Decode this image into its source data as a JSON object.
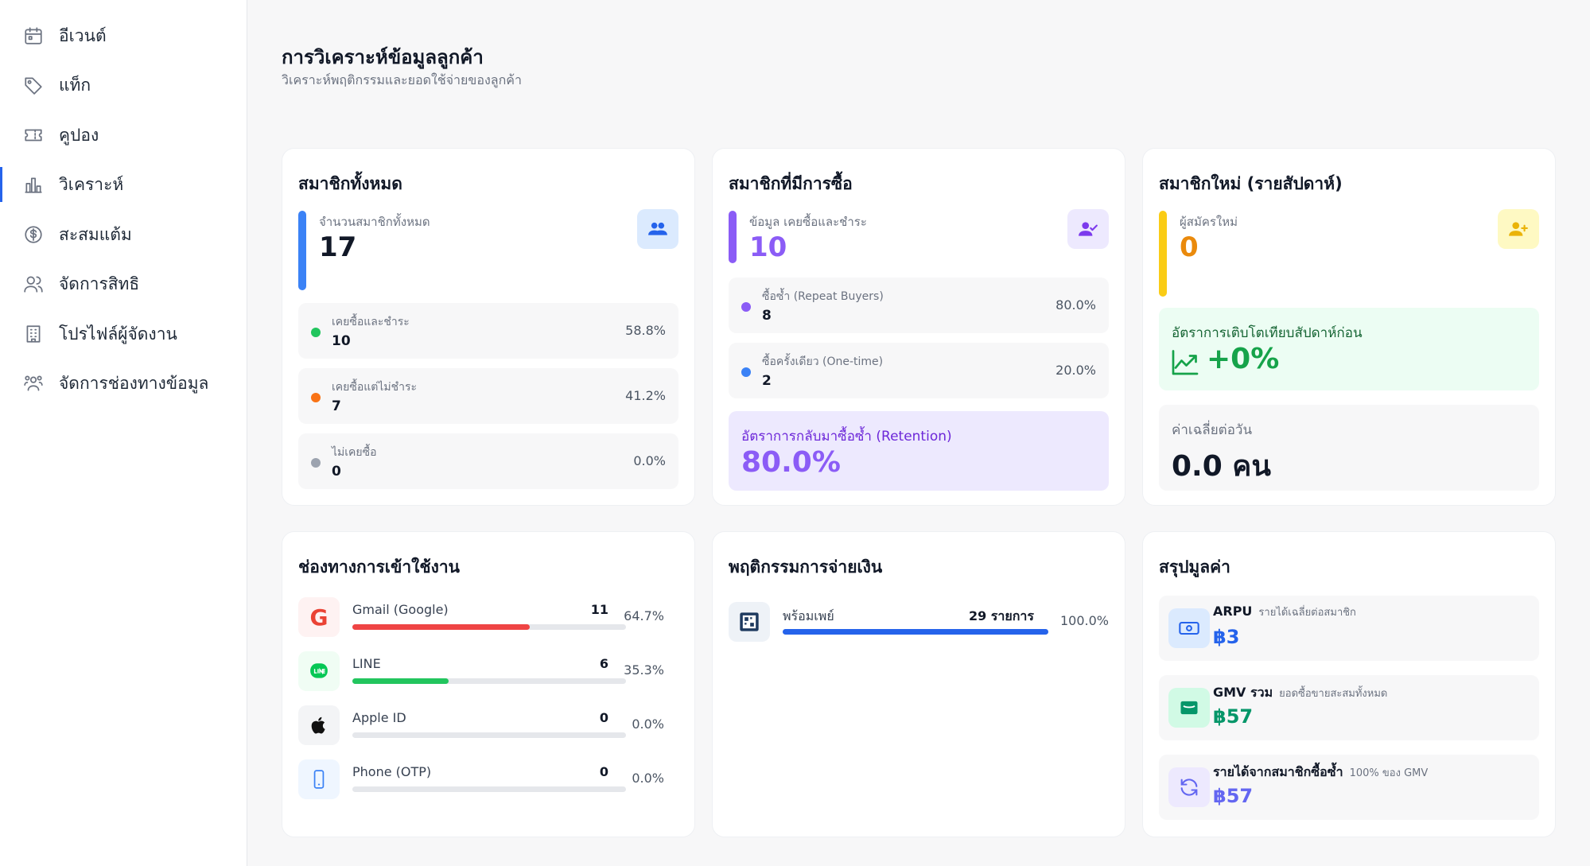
{
  "sidebar": {
    "items": [
      {
        "label": "อีเวนต์",
        "icon": "calendar-icon"
      },
      {
        "label": "แท็ก",
        "icon": "tag-icon"
      },
      {
        "label": "คูปอง",
        "icon": "ticket-icon"
      },
      {
        "label": "วิเคราะห์",
        "icon": "bar-chart-icon",
        "active": true
      },
      {
        "label": "สะสมแต้ม",
        "icon": "dollar-circle-icon"
      },
      {
        "label": "จัดการสิทธิ",
        "icon": "users-icon"
      },
      {
        "label": "โปรไฟล์ผู้จัดงาน",
        "icon": "building-icon"
      },
      {
        "label": "จัดการช่องทางข้อมูล",
        "icon": "user-network-icon"
      }
    ]
  },
  "header": {
    "title": "การวิเคราะห์ข้อมูลลูกค้า",
    "subtitle": "วิเคราะห์พฤติกรรมและยอดใช้จ่ายของลูกค้า"
  },
  "total_members": {
    "title": "สมาชิกทั้งหมด",
    "label": "จำนวนสมาชิกทั้งหมด",
    "value": "17",
    "rows": [
      {
        "label": "เคยซื้อและชำระ",
        "value": "10",
        "pct": "58.8%",
        "color": "#22c55e"
      },
      {
        "label": "เคยซื้อแต่ไม่ชำระ",
        "value": "7",
        "pct": "41.2%",
        "color": "#f97316"
      },
      {
        "label": "ไม่เคยซื้อ",
        "value": "0",
        "pct": "0.0%",
        "color": "#9ca3af"
      }
    ]
  },
  "purchasing_members": {
    "title": "สมาชิกที่มีการซื้อ",
    "label": "ข้อมูล เคยซื้อและชำระ",
    "value": "10",
    "rows": [
      {
        "label": "ซื้อซ้ำ (Repeat Buyers)",
        "value": "8",
        "pct": "80.0%",
        "color": "#8b5cf6"
      },
      {
        "label": "ซื้อครั้งเดียว (One-time)",
        "value": "2",
        "pct": "20.0%",
        "color": "#3b82f6"
      }
    ],
    "retention_label": "อัตราการกลับมาซื้อซ้ำ (Retention)",
    "retention_value": "80.0%"
  },
  "new_members": {
    "title": "สมาชิกใหม่ (รายสัปดาห์)",
    "label": "ผู้สมัครใหม่",
    "value": "0",
    "growth_label": "อัตราการเติบโตเทียบสัปดาห์ก่อน",
    "growth_value": "+0%",
    "daily_label": "ค่าเฉลี่ยต่อวัน",
    "daily_value": "0.0 คน"
  },
  "channels": {
    "title": "ช่องทางการเข้าใช้งาน",
    "items": [
      {
        "name": "Gmail (Google)",
        "count": "11",
        "pct": "64.7%",
        "fraction": 0.647,
        "color": "#ef4444",
        "icon": "google-icon"
      },
      {
        "name": "LINE",
        "count": "6",
        "pct": "35.3%",
        "fraction": 0.353,
        "color": "#22c55e",
        "icon": "line-icon"
      },
      {
        "name": "Apple ID",
        "count": "0",
        "pct": "0.0%",
        "fraction": 0,
        "color": "#111827",
        "icon": "apple-icon"
      },
      {
        "name": "Phone (OTP)",
        "count": "0",
        "pct": "0.0%",
        "fraction": 0,
        "color": "#3b82f6",
        "icon": "phone-icon"
      }
    ]
  },
  "payment": {
    "title": "พฤติกรรมการจ่ายเงิน",
    "items": [
      {
        "name": "พร้อมเพย์",
        "count": "29 รายการ",
        "pct": "100.0%",
        "fraction": 1.0,
        "color": "#2563eb",
        "icon": "qr-payment-icon"
      }
    ]
  },
  "summary": {
    "title": "สรุปมูลค่า",
    "items": [
      {
        "name": "ARPU",
        "desc": "รายได้เฉลี่ยต่อสมาชิก",
        "value": "฿3",
        "color": "#2563eb",
        "icon": "cash-icon"
      },
      {
        "name": "GMV รวม",
        "desc": "ยอดซื้อขายสะสมทั้งหมด",
        "value": "฿57",
        "color": "#059669",
        "icon": "wallet-icon"
      },
      {
        "name": "รายได้จากสมาชิกซื้อซ้ำ",
        "desc": "100% ของ GMV",
        "value": "฿57",
        "color": "#6366f1",
        "icon": "refresh-icon"
      }
    ]
  }
}
